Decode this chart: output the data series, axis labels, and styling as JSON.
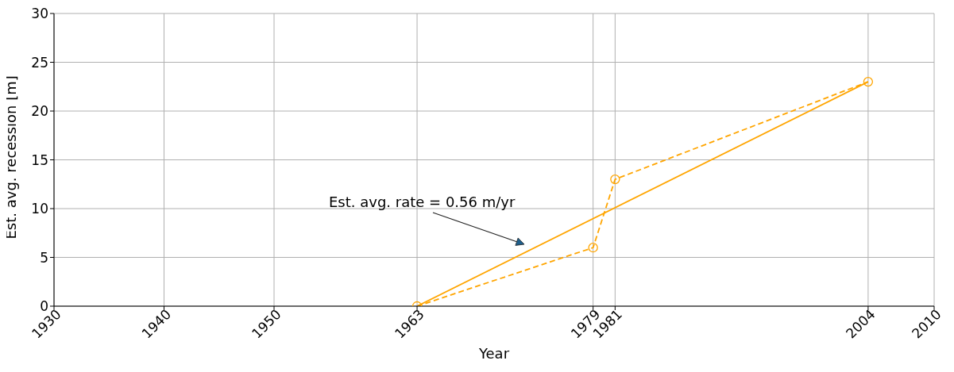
{
  "chart_data": {
    "type": "line",
    "xlabel": "Year",
    "ylabel": "Est. avg. recession [m]",
    "series": [
      {
        "color": "#ffa500",
        "x": [
          1963,
          1979,
          1981,
          2004
        ],
        "values": [
          0,
          6,
          13,
          23
        ],
        "marker": "circle",
        "line_style": "dashed"
      },
      {
        "color": "#ffa500",
        "x": [
          1963,
          2004
        ],
        "values": [
          0,
          23
        ],
        "marker": "none",
        "line_style": "solid"
      }
    ],
    "annotations": [
      "Est. avg. rate = 0.56 m/yr"
    ],
    "xlim": [
      1930,
      2010
    ],
    "xticks": [
      1930,
      1940,
      1950,
      1963,
      1979,
      1981,
      2004,
      2010
    ],
    "ylim": [
      0,
      30
    ],
    "yticks": [
      0,
      5,
      10,
      15,
      20,
      25,
      30
    ],
    "grid": true
  }
}
